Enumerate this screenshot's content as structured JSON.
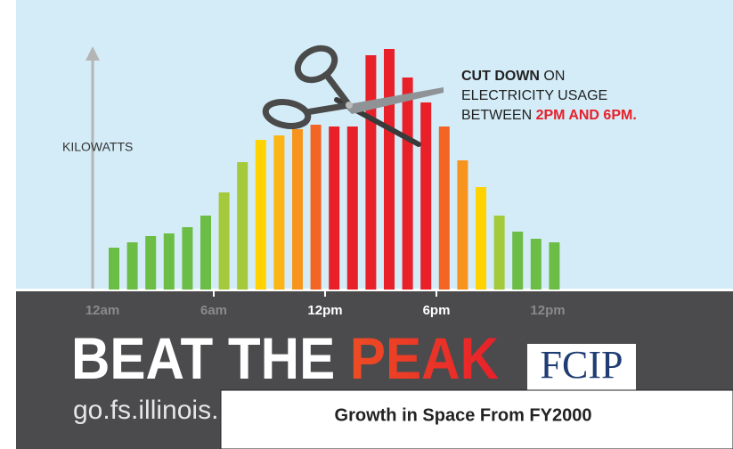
{
  "chart_data": {
    "type": "bar",
    "y_label": "KILOWATTS",
    "annotation": {
      "lead": "CUT DOWN",
      "lead_rest": " ON",
      "line2": "ELECTRICITY USAGE",
      "line3": "BETWEEN ",
      "highlight": "2PM AND 6PM."
    },
    "values": [
      47,
      53,
      60,
      63,
      70,
      83,
      109,
      143,
      168,
      173,
      180,
      185,
      183,
      183,
      263,
      270,
      238,
      210,
      183,
      145,
      115,
      83,
      65,
      57,
      53
    ],
    "colors": [
      "#6cbd45",
      "#6cbd45",
      "#6cbd45",
      "#6cbd45",
      "#6cbd45",
      "#6cbd45",
      "#a4c93a",
      "#a4c93a",
      "#ffd200",
      "#fbb615",
      "#f7941d",
      "#f26522",
      "#e8202a",
      "#e8202a",
      "#e8202a",
      "#e8202a",
      "#e8202a",
      "#e8202a",
      "#f26522",
      "#f7941d",
      "#ffd200",
      "#a4c93a",
      "#6cbd45",
      "#6cbd45",
      "#6cbd45"
    ],
    "ylim": [
      0,
      325
    ],
    "xlim": [
      0,
      24
    ],
    "xticks": [
      {
        "value": 0,
        "label": "12am"
      },
      {
        "value": 6,
        "label": "6am"
      },
      {
        "value": 12,
        "label": "12pm"
      },
      {
        "value": 18,
        "label": "6pm"
      },
      {
        "value": 24,
        "label": "12pm"
      }
    ]
  },
  "banner": {
    "title_white": "BEAT THE ",
    "title_color": "PEAK",
    "url": "go.fs.illinois.",
    "logo": "FCIP"
  },
  "overlay": {
    "title": "Growth in Space From FY2000"
  }
}
